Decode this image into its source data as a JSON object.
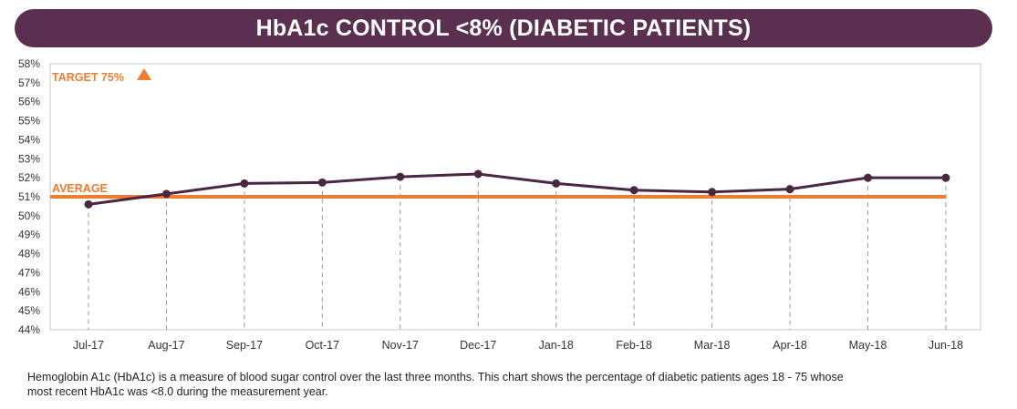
{
  "header": {
    "title": "HbA1c CONTROL <8% (DIABETIC PATIENTS)"
  },
  "colors": {
    "banner": "#5a2f50",
    "line": "#4b2640",
    "accent": "#ec7d31",
    "guide": "#999999",
    "frame": "#c8c8c8"
  },
  "chart_data": {
    "type": "line",
    "title": "HbA1c CONTROL <8% (DIABETIC PATIENTS)",
    "categories": [
      "Jul-17",
      "Aug-17",
      "Sep-17",
      "Oct-17",
      "Nov-17",
      "Dec-17",
      "Jan-18",
      "Feb-18",
      "Mar-18",
      "Apr-18",
      "May-18",
      "Jun-18"
    ],
    "series": [
      {
        "values": [
          50.6,
          51.15,
          51.7,
          51.75,
          52.05,
          52.2,
          51.7,
          51.35,
          51.25,
          51.4,
          52.0,
          52.0
        ]
      }
    ],
    "y_ticks": [
      "44%",
      "45%",
      "46%",
      "47%",
      "48%",
      "49%",
      "50%",
      "51%",
      "52%",
      "53%",
      "54%",
      "55%",
      "56%",
      "57%",
      "58%"
    ],
    "ylim": [
      44,
      58
    ],
    "reference_lines": [
      {
        "label": "AVERAGE",
        "value": 51.0
      }
    ],
    "target": {
      "label": "TARGET 75%",
      "value": 75,
      "direction": "up"
    },
    "grid": false,
    "vertical_guides": true
  },
  "caption": {
    "line1": "Hemoglobin A1c (HbA1c) is a measure of blood sugar control over the last three months.  This chart shows the percentage of diabetic patients ages 18 - 75 whose",
    "line2": "most recent HbA1c was <8.0 during the measurement year."
  }
}
